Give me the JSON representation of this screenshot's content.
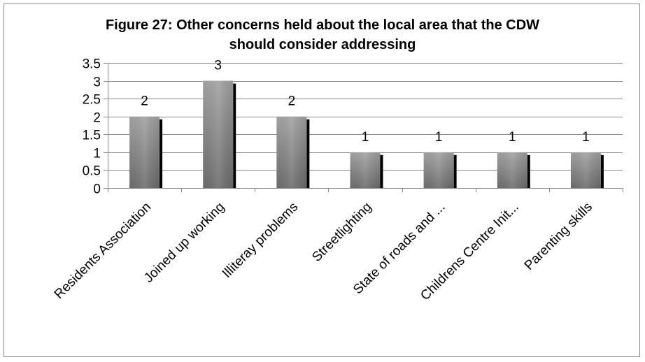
{
  "chart_data": {
    "type": "bar",
    "title_line1": "Figure 27:  Other concerns held about the local area that the CDW",
    "title_line2": "should consider addressing",
    "categories": [
      "Residents Association",
      "Joined up working",
      "Illiteray problems",
      "Streetlighting",
      "State of roads and ...",
      "Childrens Centre Init...",
      "Parenting skills"
    ],
    "values": [
      2,
      3,
      2,
      1,
      1,
      1,
      1
    ],
    "data_labels": [
      "2",
      "3",
      "2",
      "1",
      "1",
      "1",
      "1"
    ],
    "ylim": [
      0,
      3.5
    ],
    "yticks": [
      "0",
      "0.5",
      "1",
      "1.5",
      "2",
      "2.5",
      "3",
      "3.5"
    ],
    "grid": true,
    "bar_color": "#8c8c8c",
    "shadow_color": "#000000"
  }
}
